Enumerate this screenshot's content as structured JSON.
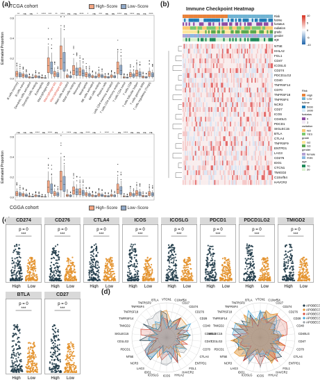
{
  "panel_a": {
    "label": "(a)",
    "top_title": "TCGA cohort",
    "bottom_title": "CGGA cohort",
    "ylabel": "Estimated Proportion",
    "legend": {
      "high": "High−Score",
      "low": "Low−Score"
    },
    "colors": {
      "high": "#f4a582",
      "low": "#8fa8c7"
    },
    "cell_types": [
      "B cells memory",
      "B cells naive",
      "Dendritic cells activated",
      "Dendritic cells resting",
      "Eosinophils",
      "Macrophages M0",
      "Macrophages M1",
      "Macrophages M2",
      "Mast cells activated",
      "Mast cells resting",
      "Monocytes",
      "Neutrophils",
      "NK cells activated",
      "NK cells resting",
      "Plasma cells",
      "T cells CD4 memory activated",
      "T cells CD4 memory resting",
      "T cells CD4 naive",
      "T cells CD8",
      "T cells follicular helper",
      "T cells gamma delta",
      "T cells regulatory (Tregs)"
    ],
    "top_sig": [
      "**",
      "ns",
      "ns",
      "*",
      "****",
      "***",
      "**",
      "****",
      "ns",
      "ns",
      "****",
      "*",
      "ns",
      "***",
      "ns",
      "ns",
      "****",
      "ns",
      "****",
      "ns",
      "ns",
      "****"
    ],
    "bottom_sig": [
      "ns",
      "ns",
      "ns",
      "****",
      "ns",
      "****",
      "ns",
      "*",
      "****",
      "ns",
      "ns",
      "****",
      "ns",
      "*",
      "****",
      "*",
      "ns",
      "****",
      "ns",
      "ns",
      "ns",
      "ns"
    ],
    "top_yticks": [
      "0.6",
      "0.4",
      "0.2",
      "0.0"
    ],
    "bottom_yticks": [
      "0.6",
      "0.4",
      "0.2",
      "0.0"
    ]
  },
  "panel_b": {
    "label": "(b)",
    "title": "Immune Checkpoint Heatmap",
    "annotations": [
      "Risk",
      "futime",
      "fustatus",
      "radiation",
      "grade",
      "gender",
      "age"
    ],
    "genes": [
      "NT5E",
      "HHLA2",
      "FGL1",
      "CD47",
      "ICOSLG",
      "CD274",
      "PDCD1LG2",
      "CD40",
      "TNFRSF14",
      "CD70",
      "TNFRSF18",
      "TNFRSF4",
      "NCR3",
      "CD27",
      "ICOS",
      "CD40LG",
      "PDCD1",
      "SIGLEC15",
      "BTLA",
      "CTLA4",
      "TNFRSF9",
      "ENTPD1",
      "LAG3",
      "CD276",
      "IDO1",
      "CTCN1",
      "TMIGD2",
      "C10orf54",
      "HAVCR2"
    ],
    "colorbar_ticks": [
      "10",
      "5",
      "0",
      "-5",
      "-10"
    ],
    "legends": [
      {
        "title": "Risk",
        "items": [
          {
            "label": "High",
            "color": "#e8823a"
          },
          {
            "label": "Low",
            "color": "#6fb3d2"
          }
        ]
      },
      {
        "title": "futime",
        "items": [
          {
            "label": "5000",
            "color": "#1e7bb5"
          },
          {
            "label": "1000",
            "color": "#d6ebf7"
          }
        ]
      },
      {
        "title": "fustatus",
        "items": [
          {
            "label": "0",
            "color": "#8e4ca3"
          },
          {
            "label": "1",
            "color": "#f0e6f4"
          }
        ]
      },
      {
        "title": "radiation",
        "items": [
          {
            "label": "NO",
            "color": "#fbc971"
          },
          {
            "label": "YES",
            "color": "#7bc96f"
          }
        ]
      },
      {
        "title": "grade",
        "items": [
          {
            "label": "G2",
            "color": "#ffe79c"
          },
          {
            "label": "G3",
            "color": "#5aa84c"
          }
        ]
      },
      {
        "title": "gender",
        "items": [
          {
            "label": "female",
            "color": "#b3a2d4"
          },
          {
            "label": "male",
            "color": "#8bb8e0"
          }
        ]
      },
      {
        "title": "age",
        "items": [
          {
            "label": "70",
            "color": "#1f8a5a"
          },
          {
            "label": "20",
            "color": "#d8f0cf"
          }
        ]
      }
    ]
  },
  "panel_c": {
    "label": "(c)",
    "stat": "p = 0",
    "stars": "***",
    "groups": [
      "High",
      "Low"
    ],
    "colors": {
      "high": "#1f3a48",
      "low": "#e3912b"
    },
    "genes_row1": [
      "CD274",
      "CD276",
      "CTLA4",
      "ICOS",
      "ICOSLG",
      "PDCD1",
      "PDCD1LG2",
      "TMIGD2"
    ],
    "genes_row2": [
      "BTLA",
      "CD27"
    ]
  },
  "panel_d": {
    "label": "(d)",
    "axes": [
      "VTCN1",
      "C10orf54",
      "CD27",
      "CD274",
      "CD276",
      "CD28",
      "CD40",
      "CD40LG",
      "CD47",
      "CD70",
      "CTLA4",
      "ENTPD1",
      "FGL1",
      "HAVCR2",
      "HHLA2",
      "ICOS",
      "ICOSLG",
      "IDO1",
      "LAG3",
      "NCR3",
      "NT5E",
      "PDCD1",
      "CD1LG2",
      "SIGLEC15",
      "TMIGD2",
      "TNFRSF14",
      "TNFRSF18",
      "TNFRSF4",
      "TNFRSF9",
      "BTLA"
    ],
    "legend": [
      {
        "label": "APOBEC3C",
        "color": "#1f3a48"
      },
      {
        "label": "APOBEC3D",
        "color": "#e3912b"
      },
      {
        "label": "APOBEC3F",
        "color": "#d64a3a"
      },
      {
        "label": "APOBEC3G",
        "color": "#3ca3d8"
      },
      {
        "label": "APOBEC3H",
        "color": "#9aa0a6"
      }
    ]
  }
}
